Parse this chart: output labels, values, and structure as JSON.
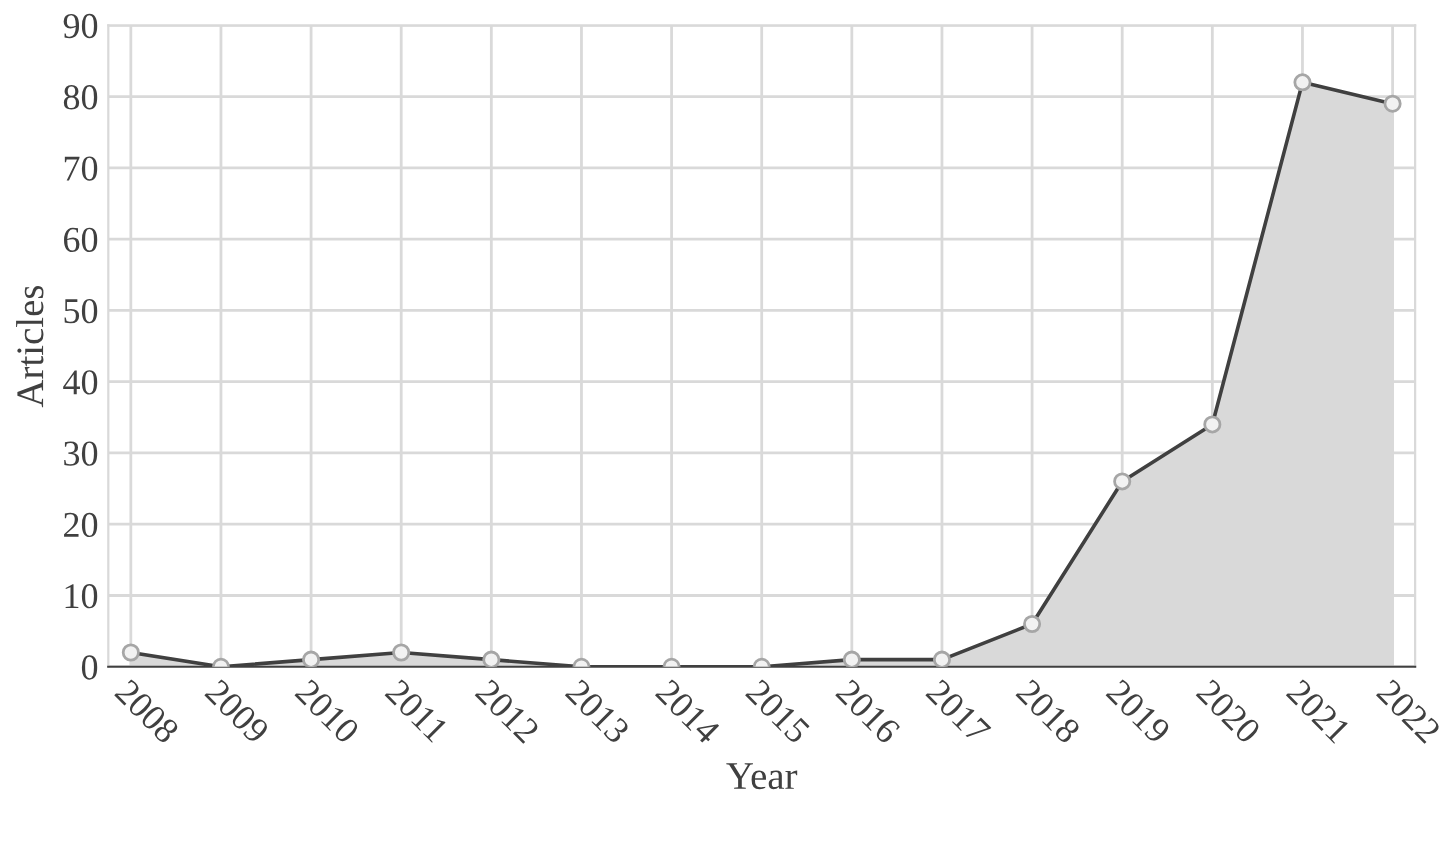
{
  "chart_data": {
    "type": "area",
    "xlabel": "Year",
    "ylabel": "Articles",
    "categories": [
      "2008",
      "2009",
      "2010",
      "2011",
      "2012",
      "2013",
      "2014",
      "2015",
      "2016",
      "2017",
      "2018",
      "2019",
      "2020",
      "2021",
      "2022"
    ],
    "series": [
      {
        "color": "#d9d9d9",
        "values": [
          2,
          0,
          1,
          2,
          1,
          0,
          0,
          0,
          1,
          1,
          6,
          26,
          34,
          82,
          79
        ]
      }
    ],
    "ylim": [
      0,
      90
    ],
    "yticks": [
      0,
      10,
      20,
      30,
      40,
      50,
      60,
      70,
      80,
      90
    ],
    "grid": true,
    "marker": "circle",
    "line_style": "solid"
  }
}
